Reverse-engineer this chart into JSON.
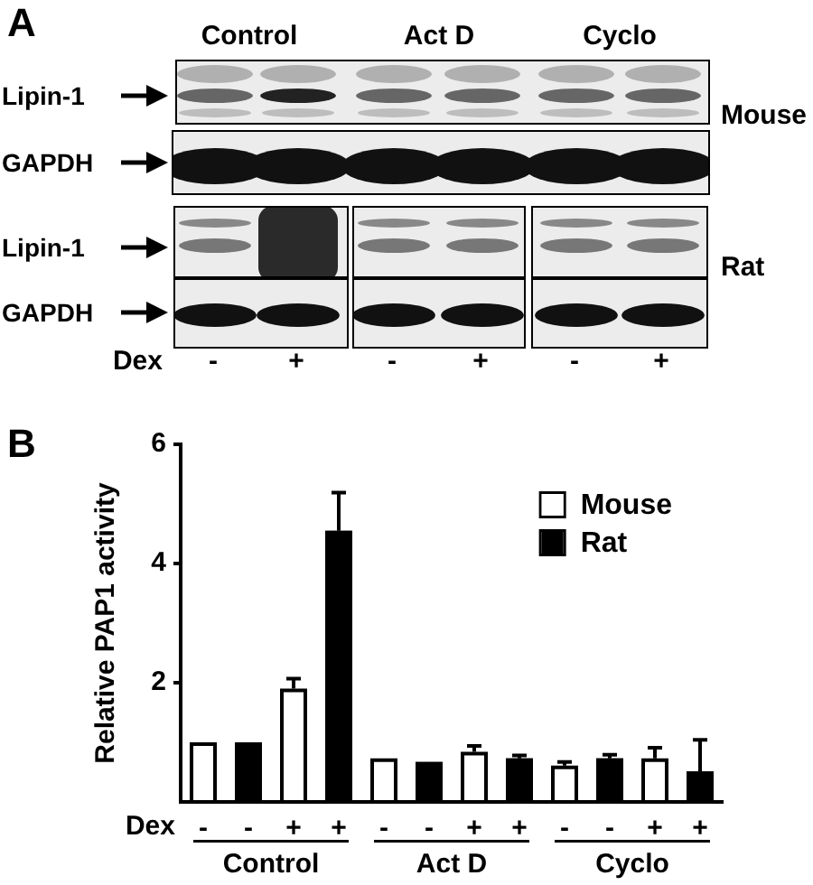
{
  "chart_data": [
    {
      "type": "other",
      "title": "A",
      "annotations": [
        "Control",
        "Act D",
        "Cyclo",
        "Lipin-1",
        "GAPDH",
        "Lipin-1",
        "GAPDH",
        "Mouse",
        "Rat",
        "Dex",
        "-",
        "+",
        "-",
        "+",
        "-",
        "+"
      ]
    },
    {
      "type": "bar",
      "title": "B",
      "xlabel": "Dex",
      "ylabel": "Relative PAP1 activity",
      "categories": [
        "-",
        "-",
        "+",
        "+",
        "-",
        "-",
        "+",
        "+",
        "-",
        "-",
        "+",
        "+"
      ],
      "series": [
        {
          "name": "Mouse",
          "color": "#ffffff",
          "values": [
            1.0,
            null,
            1.9,
            null,
            0.73,
            null,
            0.84,
            null,
            0.61,
            null,
            0.73,
            null
          ],
          "errors": [
            null,
            null,
            [
              1.9,
              2.07
            ],
            null,
            null,
            null,
            [
              0.84,
              0.94
            ],
            null,
            [
              0.61,
              0.67
            ],
            null,
            [
              0.73,
              0.91
            ],
            null
          ]
        },
        {
          "name": "Rat",
          "color": "#000000",
          "values": [
            null,
            1.0,
            null,
            4.55,
            null,
            0.67,
            null,
            0.73,
            null,
            0.73,
            null,
            0.51
          ],
          "errors": [
            null,
            null,
            null,
            [
              4.55,
              5.19
            ],
            null,
            null,
            null,
            [
              0.73,
              0.78
            ],
            null,
            [
              0.73,
              0.79
            ],
            null,
            [
              0.51,
              1.04
            ]
          ]
        }
      ],
      "ylim": [
        0,
        6
      ],
      "yticks": [
        2,
        4,
        6
      ],
      "legend": "top right",
      "annotations": [
        "Control",
        "Act D",
        "Cyclo"
      ]
    }
  ]
}
